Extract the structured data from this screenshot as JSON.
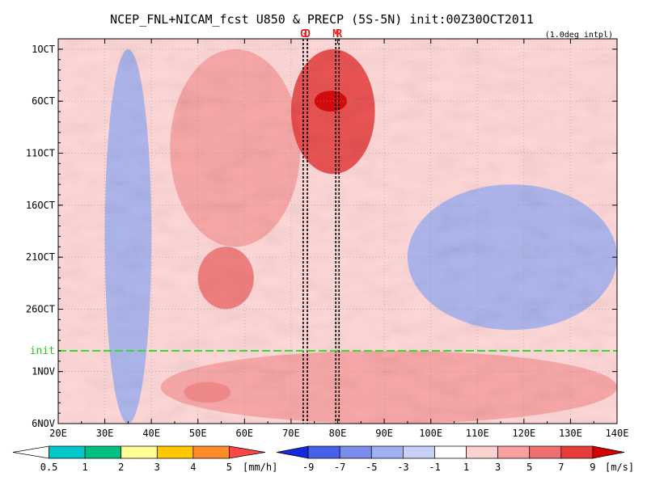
{
  "chart_data": {
    "type": "heatmap",
    "title": "NCEP_FNL+NICAM_fcst U850 & PRECP (5S-5N) init:00Z30OCT2011",
    "note": "(1.0deg intpl)",
    "x_tick_labels": [
      "20E",
      "30E",
      "40E",
      "50E",
      "60E",
      "70E",
      "80E",
      "90E",
      "100E",
      "110E",
      "120E",
      "130E",
      "140E"
    ],
    "x_tick_values": [
      20,
      30,
      40,
      50,
      60,
      70,
      80,
      90,
      100,
      110,
      120,
      130,
      140
    ],
    "xlim": [
      20,
      140
    ],
    "y_tick_labels": [
      "1OCT",
      "6OCT",
      "11OCT",
      "16OCT",
      "21OCT",
      "26OCT",
      "1NOV",
      "6NOV"
    ],
    "y_tick_values": [
      1,
      6,
      11,
      16,
      21,
      26,
      32,
      37
    ],
    "ylim": [
      0,
      37
    ],
    "init_label": "init",
    "init_day": 30,
    "markers": [
      {
        "label": "G",
        "lon": 72.6
      },
      {
        "label": "D",
        "lon": 73.5
      },
      {
        "label": "M",
        "lon": 79.6
      },
      {
        "label": "R",
        "lon": 80.3
      }
    ],
    "precip_legend": {
      "unit": "[mm/h]",
      "labels": [
        "0.5",
        "1",
        "2",
        "3",
        "4",
        "5"
      ],
      "colors": [
        "#ffffff",
        "#00c8c8",
        "#00c080",
        "#ffff96",
        "#ffc800",
        "#ff8c28",
        "#ff4646"
      ]
    },
    "u850_legend": {
      "unit": "[m/s]",
      "labels": [
        "-9",
        "-7",
        "-5",
        "-3",
        "-1",
        "1",
        "3",
        "5",
        "7",
        "9"
      ],
      "colors": [
        "#1428dc",
        "#4660e6",
        "#7a8cec",
        "#a0b0f0",
        "#c8d0f8",
        "#ffffff",
        "#ffd2d2",
        "#f8a0a0",
        "#f07070",
        "#e63c3c",
        "#d20000"
      ]
    },
    "u850_pattern": [
      {
        "lon_range": [
          30,
          40
        ],
        "day_range": [
          1,
          37
        ],
        "level": "-5"
      },
      {
        "lon_range": [
          44,
          72
        ],
        "day_range": [
          1,
          20
        ],
        "level": "3"
      },
      {
        "lon_range": [
          70,
          88
        ],
        "day_range": [
          1,
          13
        ],
        "level": "7"
      },
      {
        "lon_range": [
          75,
          82
        ],
        "day_range": [
          5,
          7
        ],
        "level": "9"
      },
      {
        "lon_range": [
          95,
          140
        ],
        "day_range": [
          14,
          28
        ],
        "level": "-5"
      },
      {
        "lon_range": [
          50,
          62
        ],
        "day_range": [
          20,
          26
        ],
        "level": "5"
      },
      {
        "lon_range": [
          47,
          57
        ],
        "day_range": [
          33,
          35
        ],
        "level": "9"
      },
      {
        "lon_range": [
          42,
          140
        ],
        "day_range": [
          30,
          37
        ],
        "level": "3"
      }
    ]
  }
}
